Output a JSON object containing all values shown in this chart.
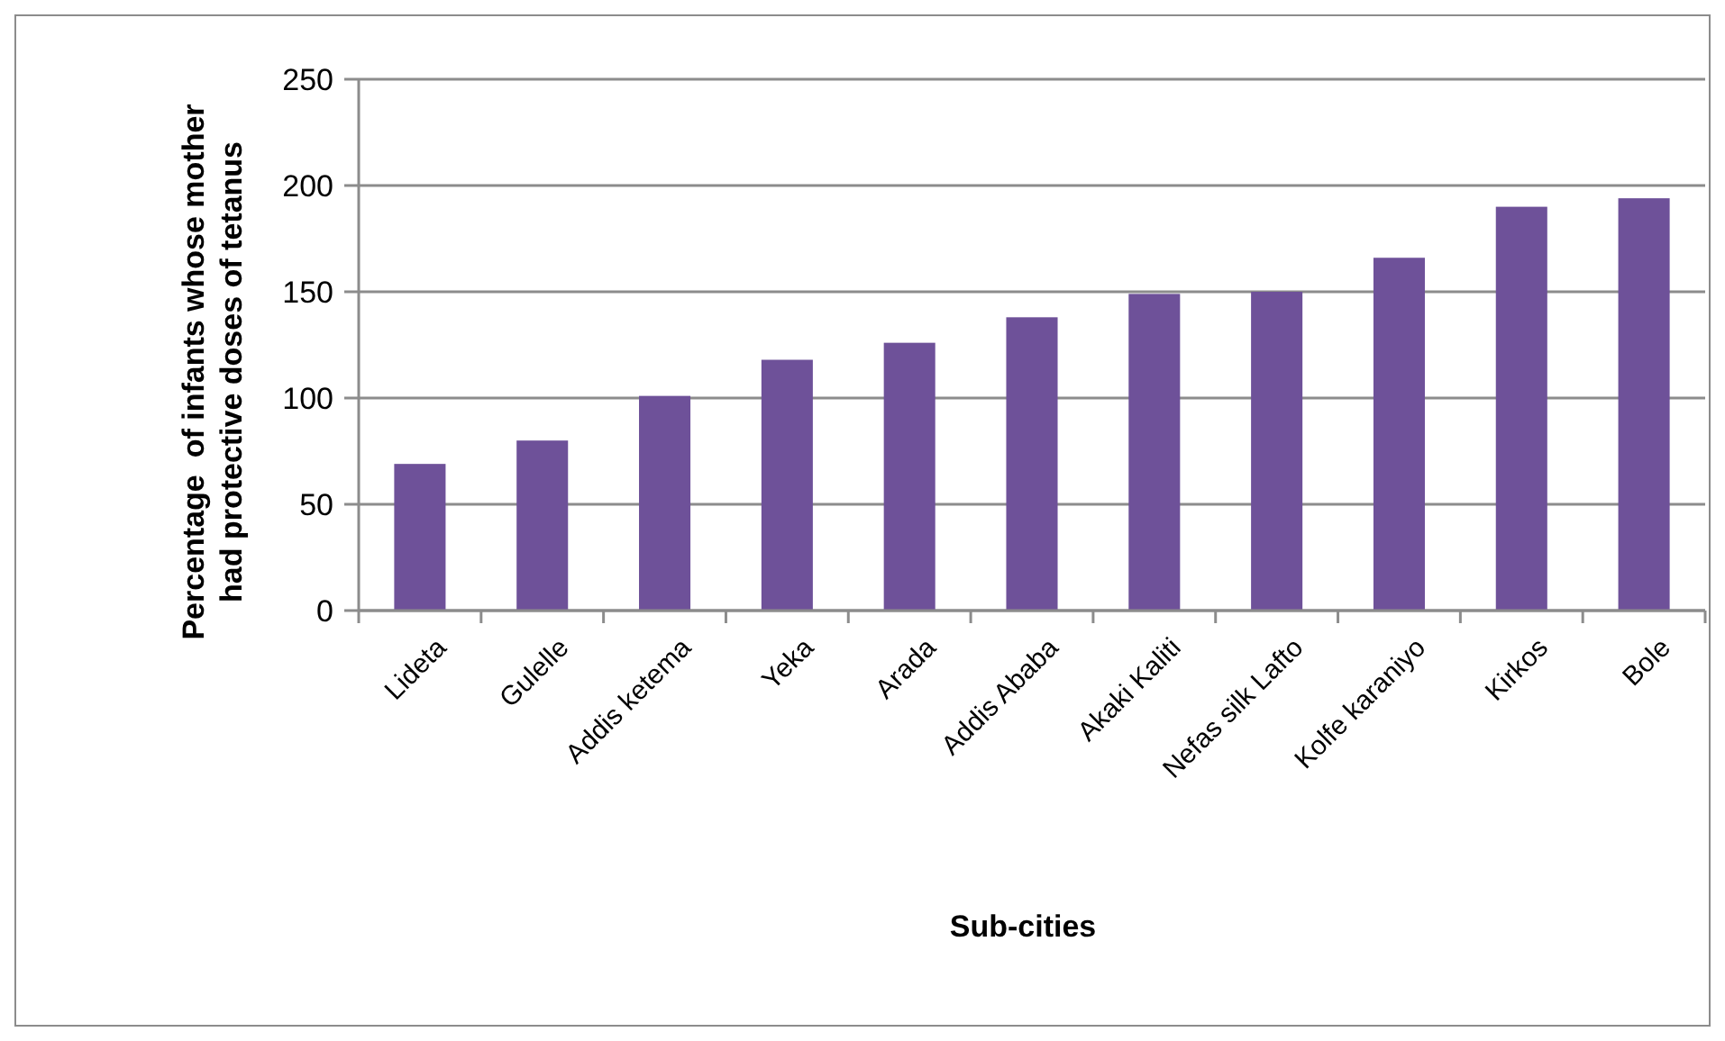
{
  "chart_data": {
    "type": "bar",
    "xlabel": "Sub-cities",
    "ylabel": "Percentage  of infants whose mother had protective doses of tetanus",
    "categories": [
      "Lideta",
      "Gulelle",
      "Addis ketema",
      "Yeka",
      "Arada",
      "Addis Ababa",
      "Akaki Kaliti",
      "Nefas silk Lafto",
      "Kolfe karaniyo",
      "Kirkos",
      "Bole"
    ],
    "values": [
      69,
      80,
      101,
      118,
      126,
      138,
      149,
      150,
      166,
      190,
      194
    ],
    "color": "#6e5199",
    "ylim": [
      0,
      250
    ],
    "yticks": [
      0,
      50,
      100,
      150,
      200,
      250
    ],
    "grid": "y"
  }
}
